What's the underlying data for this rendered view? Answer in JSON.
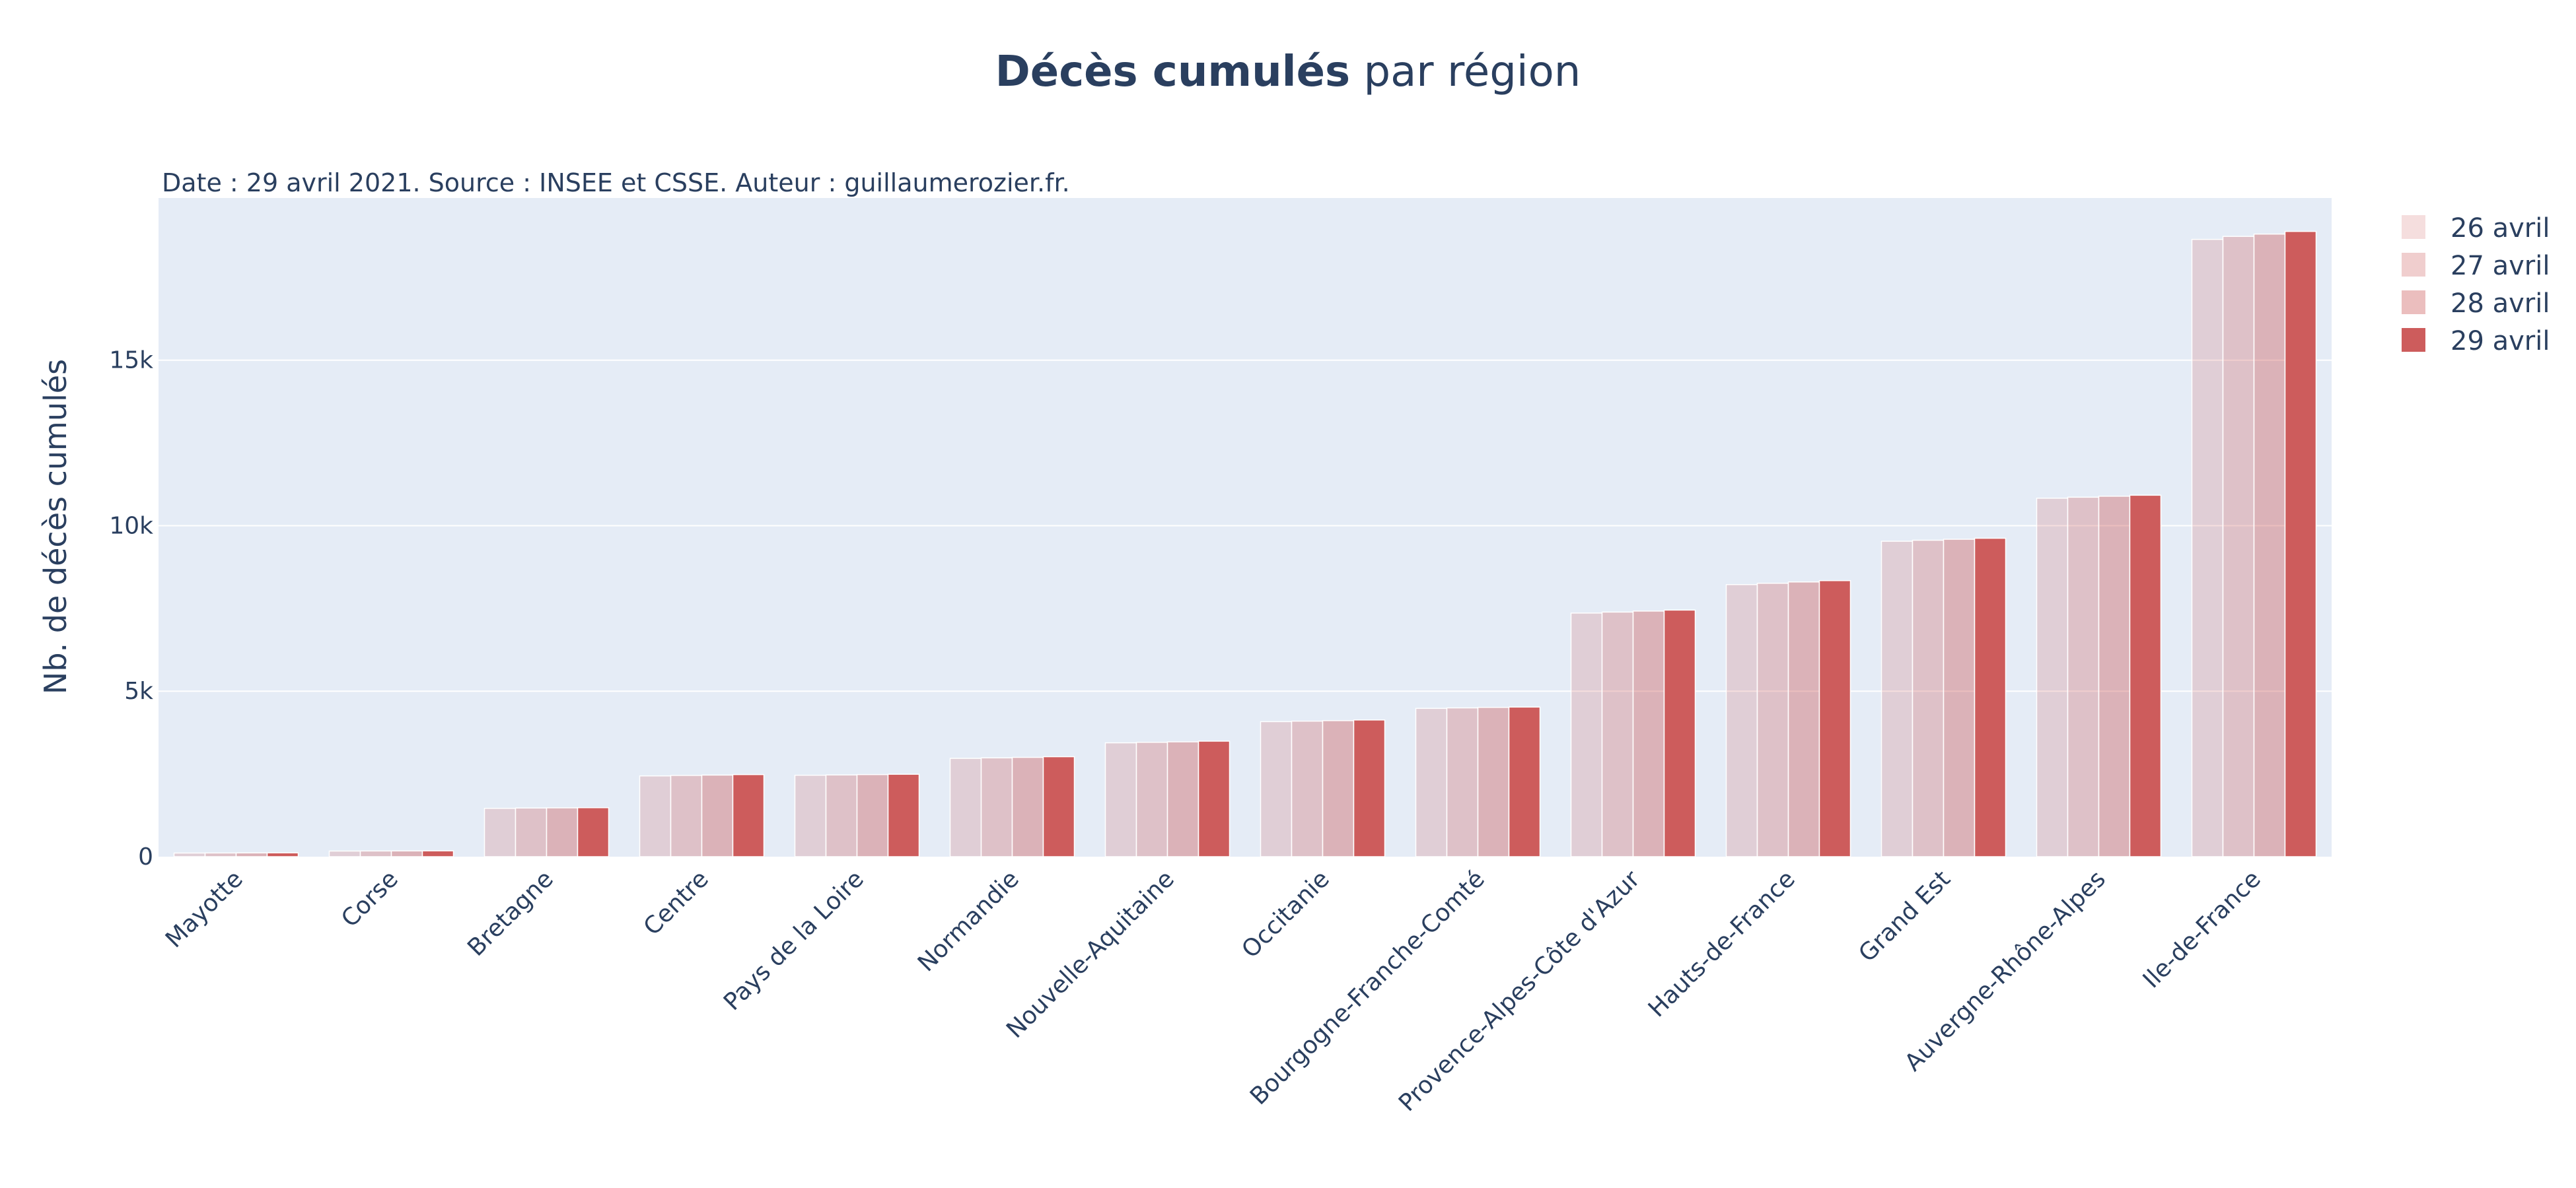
{
  "chart_data": {
    "type": "bar",
    "title_bold": "Décès cumulés",
    "title_rest": " par région",
    "subtitle": "Date : 29 avril 2021. Source : INSEE et CSSE. Auteur : guillaumerozier.fr.",
    "xlabel": "",
    "ylabel": "Nb. de décès cumulés",
    "ylim": [
      0,
      19900
    ],
    "y_ticks": [
      {
        "value": 0,
        "label": "0"
      },
      {
        "value": 5000,
        "label": "5k"
      },
      {
        "value": 10000,
        "label": "10k"
      },
      {
        "value": 15000,
        "label": "15k"
      }
    ],
    "grid": true,
    "legend_position": "top-right",
    "categories": [
      "Mayotte",
      "Corse",
      "Bretagne",
      "Centre",
      "Pays de la Loire",
      "Normandie",
      "Nouvelle-Aquitaine",
      "Occitanie",
      "Bourgogne-Franche-Comté",
      "Provence-Alpes-Côte d'Azur",
      "Hauts-de-France",
      "Grand Est",
      "Auvergne-Rhône-Alpes",
      "Ile-de-France"
    ],
    "series": [
      {
        "name": "26 avril",
        "color": "#cd5c5c",
        "opacity": 0.2,
        "values": [
          110,
          170,
          1460,
          2440,
          2460,
          2970,
          3440,
          4080,
          4480,
          7360,
          8220,
          9530,
          10830,
          18650
        ]
      },
      {
        "name": "27 avril",
        "color": "#cd5c5c",
        "opacity": 0.3,
        "values": [
          112,
          172,
          1470,
          2455,
          2470,
          2985,
          3455,
          4095,
          4495,
          7390,
          8260,
          9560,
          10860,
          18740
        ]
      },
      {
        "name": "28 avril",
        "color": "#cd5c5c",
        "opacity": 0.4,
        "values": [
          114,
          174,
          1475,
          2465,
          2480,
          3000,
          3470,
          4110,
          4510,
          7420,
          8300,
          9590,
          10890,
          18810
        ]
      },
      {
        "name": "29 avril",
        "color": "#cd5c5c",
        "opacity": 1.0,
        "values": [
          116,
          176,
          1480,
          2480,
          2490,
          3020,
          3490,
          4130,
          4520,
          7450,
          8340,
          9620,
          10920,
          18890
        ]
      }
    ],
    "colors": {
      "plot_bg": "#e5ecf6",
      "grid": "#ffffff",
      "text": "#2a3f5f",
      "bar": "#cd5c5c"
    }
  }
}
